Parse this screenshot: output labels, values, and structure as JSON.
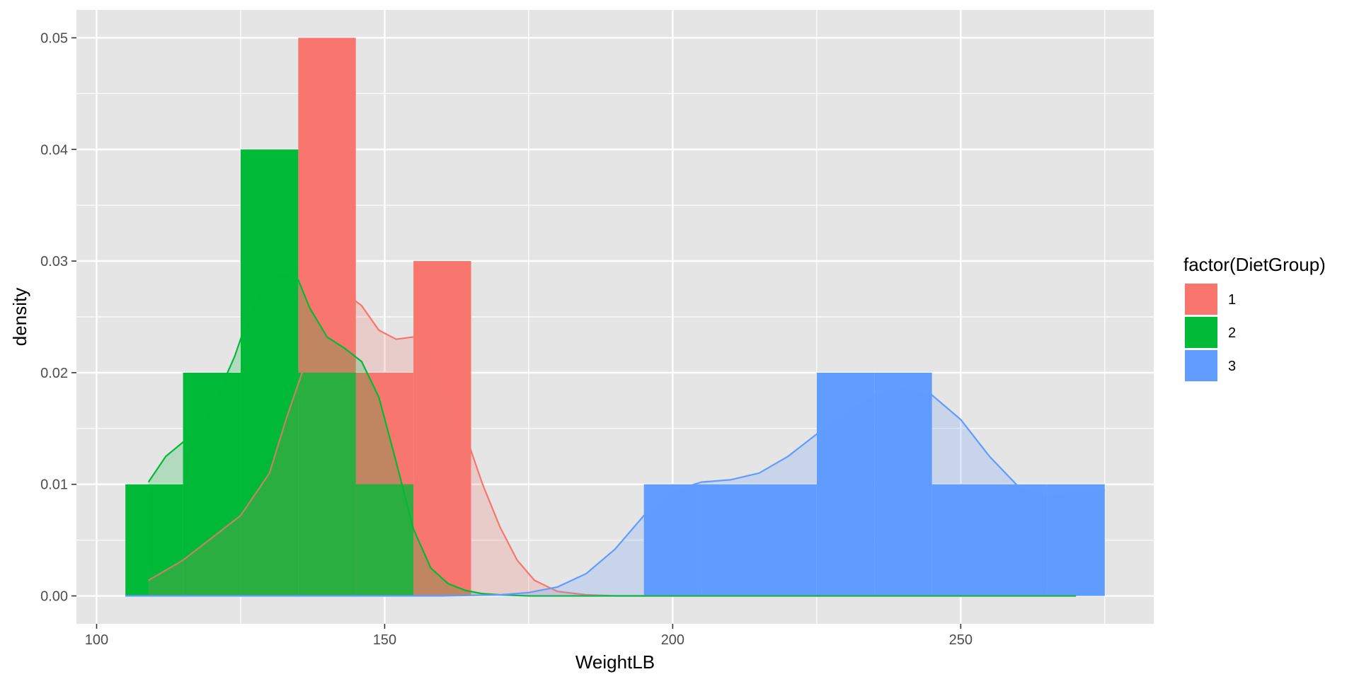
{
  "chart_data": {
    "type": "bar",
    "subtype": "histogram with density overlay",
    "title": "",
    "xlabel": "WeightLB",
    "ylabel": "density",
    "xlim": [
      96.5,
      283.5
    ],
    "ylim": [
      -0.0025,
      0.0525
    ],
    "x_ticks": [
      100,
      150,
      200,
      250
    ],
    "x_tick_labels": [
      "100",
      "150",
      "200",
      "250"
    ],
    "y_ticks": [
      0,
      0.01,
      0.02,
      0.03,
      0.04,
      0.05
    ],
    "y_tick_labels": [
      "0.00",
      "0.01",
      "0.02",
      "0.03",
      "0.04",
      "0.05"
    ],
    "grid": true,
    "background": "#e5e5e5",
    "bin_width": 10,
    "legend": {
      "title": "factor(DietGroup)",
      "position": "right",
      "entries": [
        {
          "label": "1",
          "color": "#f8766d"
        },
        {
          "label": "2",
          "color": "#00ba38"
        },
        {
          "label": "3",
          "color": "#619cff"
        }
      ]
    },
    "series": [
      {
        "name": "1",
        "color": "#f8766d",
        "bins": [
          {
            "x0": 135,
            "x1": 145,
            "density": 0.05
          },
          {
            "x0": 145,
            "x1": 155,
            "density": 0.02
          },
          {
            "x0": 155,
            "x1": 165,
            "density": 0.03
          }
        ],
        "density_curve": {
          "x": [
            109,
            115,
            120,
            125,
            130,
            133,
            136,
            140,
            143,
            146,
            149,
            152,
            155,
            158,
            161,
            164,
            167,
            170,
            173,
            176,
            180,
            185,
            190,
            200,
            210,
            220,
            230,
            240,
            250,
            260,
            270
          ],
          "y": [
            0.0014,
            0.0032,
            0.0052,
            0.0072,
            0.011,
            0.016,
            0.0205,
            0.025,
            0.0272,
            0.026,
            0.0238,
            0.023,
            0.0232,
            0.0215,
            0.0185,
            0.0145,
            0.01,
            0.0062,
            0.0032,
            0.0014,
            0.0004,
            0.0001,
            0,
            0,
            0,
            0,
            0,
            0,
            0,
            0,
            0
          ]
        }
      },
      {
        "name": "2",
        "color": "#00ba38",
        "bins": [
          {
            "x0": 105,
            "x1": 115,
            "density": 0.01
          },
          {
            "x0": 115,
            "x1": 125,
            "density": 0.02
          },
          {
            "x0": 125,
            "x1": 135,
            "density": 0.04
          },
          {
            "x0": 135,
            "x1": 145,
            "density": 0.02
          },
          {
            "x0": 145,
            "x1": 155,
            "density": 0.01
          }
        ],
        "density_curve": {
          "x": [
            109,
            112,
            116,
            120,
            124,
            127,
            130,
            133,
            135,
            137,
            140,
            143,
            146,
            149,
            152,
            155,
            158,
            161,
            164,
            167,
            170,
            175,
            180,
            190,
            200,
            210,
            220,
            230,
            240,
            250,
            260,
            270
          ],
          "y": [
            0.0102,
            0.0125,
            0.0142,
            0.0168,
            0.0215,
            0.026,
            0.0285,
            0.029,
            0.0283,
            0.0258,
            0.0232,
            0.0222,
            0.021,
            0.0178,
            0.012,
            0.006,
            0.0025,
            0.0011,
            0.0005,
            0.0002,
            0.0001,
            0,
            0,
            0,
            0,
            0,
            0,
            0,
            0,
            0,
            0,
            0
          ]
        }
      },
      {
        "name": "3",
        "color": "#619cff",
        "bins": [
          {
            "x0": 195,
            "x1": 205,
            "density": 0.01
          },
          {
            "x0": 205,
            "x1": 215,
            "density": 0.01
          },
          {
            "x0": 215,
            "x1": 225,
            "density": 0.01
          },
          {
            "x0": 225,
            "x1": 235,
            "density": 0.02
          },
          {
            "x0": 235,
            "x1": 245,
            "density": 0.02
          },
          {
            "x0": 245,
            "x1": 255,
            "density": 0.01
          },
          {
            "x0": 255,
            "x1": 265,
            "density": 0.01
          },
          {
            "x0": 265,
            "x1": 275,
            "density": 0.01
          }
        ],
        "density_curve": {
          "x": [
            105,
            120,
            140,
            160,
            170,
            175,
            180,
            185,
            190,
            195,
            200,
            205,
            210,
            215,
            220,
            225,
            230,
            235,
            240,
            245,
            250,
            255,
            260,
            265,
            270,
            275
          ],
          "y": [
            0,
            0,
            0,
            0,
            0.0001,
            0.0003,
            0.0008,
            0.002,
            0.0042,
            0.0072,
            0.0094,
            0.0102,
            0.0104,
            0.011,
            0.0125,
            0.0145,
            0.0165,
            0.018,
            0.0187,
            0.018,
            0.0158,
            0.0125,
            0.0098,
            0.009,
            0.0093,
            0.0095
          ]
        }
      }
    ]
  }
}
